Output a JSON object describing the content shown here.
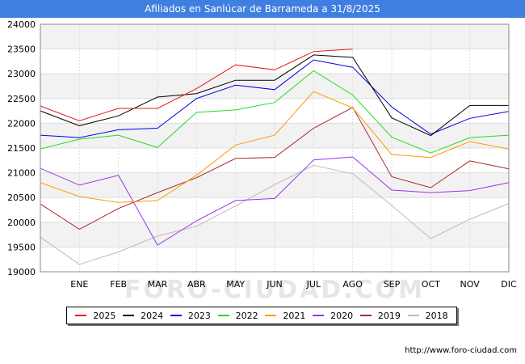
{
  "header": {
    "title": "Afiliados en Sanlúcar de Barrameda a 31/8/2025"
  },
  "watermark": "FORO-CIUDAD.COM",
  "source": "http://www.foro-ciudad.com",
  "chart_data": {
    "type": "line",
    "categories": [
      "",
      "ENE",
      "FEB",
      "MAR",
      "ABR",
      "MAY",
      "JUN",
      "JUL",
      "AGO",
      "SEP",
      "OCT",
      "NOV",
      "DIC"
    ],
    "ylim": [
      19000,
      24000
    ],
    "yticks": [
      19000,
      19500,
      20000,
      20500,
      21000,
      21500,
      22000,
      22500,
      23000,
      23500,
      24000
    ],
    "grid": true,
    "legend_position": "bottom",
    "series": [
      {
        "name": "2025",
        "color": "#e8191c",
        "values": [
          22350,
          22050,
          22300,
          22300,
          22700,
          23180,
          23080,
          23450,
          23500,
          null,
          null,
          null,
          null
        ]
      },
      {
        "name": "2024",
        "color": "#000000",
        "values": [
          22250,
          21950,
          22150,
          22530,
          22600,
          22870,
          22870,
          23380,
          23330,
          22110,
          21750,
          22360,
          22360
        ]
      },
      {
        "name": "2023",
        "color": "#0000e6",
        "values": [
          21760,
          21710,
          21870,
          21900,
          22500,
          22770,
          22680,
          23280,
          23130,
          22330,
          21780,
          22100,
          22240
        ]
      },
      {
        "name": "2022",
        "color": "#22dd22",
        "values": [
          21480,
          21680,
          21760,
          21510,
          22220,
          22270,
          22420,
          23060,
          22570,
          21720,
          21400,
          21710,
          21760
        ]
      },
      {
        "name": "2021",
        "color": "#ff9900",
        "values": [
          20800,
          20520,
          20400,
          20440,
          20950,
          21560,
          21760,
          22640,
          22310,
          21370,
          21310,
          21630,
          21480
        ]
      },
      {
        "name": "2020",
        "color": "#9933ee",
        "values": [
          21090,
          20750,
          20950,
          19540,
          20030,
          20440,
          20480,
          21260,
          21320,
          20650,
          20600,
          20640,
          20800
        ]
      },
      {
        "name": "2019",
        "color": "#a52a2a",
        "values": [
          20370,
          19860,
          20280,
          20600,
          20900,
          21290,
          21310,
          21900,
          22320,
          20920,
          20700,
          21240,
          21080
        ]
      },
      {
        "name": "2018",
        "color": "#bbbbbb",
        "values": [
          19700,
          19150,
          19400,
          19720,
          19920,
          20330,
          20760,
          21150,
          20980,
          20340,
          19670,
          20060,
          20380
        ]
      }
    ]
  }
}
